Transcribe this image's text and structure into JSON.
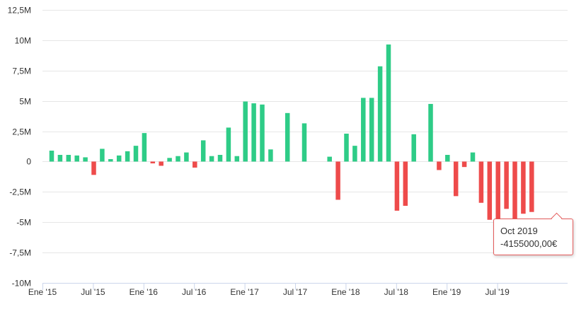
{
  "chart_data": {
    "type": "bar",
    "title": "",
    "xlabel": "",
    "ylabel": "",
    "ylim": [
      -10000000,
      12500000
    ],
    "y_ticks": [
      12500000,
      10000000,
      7500000,
      5000000,
      2500000,
      0,
      -2500000,
      -5000000,
      -7500000,
      -10000000
    ],
    "y_tick_labels": [
      "12,5M",
      "10M",
      "7,5M",
      "5M",
      "2,5M",
      "0",
      "-2,5M",
      "-5M",
      "-7,5M",
      "-10M"
    ],
    "x_tick_labels": [
      "Ene '15",
      "Jul '15",
      "Ene '16",
      "Jul '16",
      "Ene '17",
      "Jul '17",
      "Ene '18",
      "Jul '18",
      "Ene '19",
      "Jul '19"
    ],
    "grid": true,
    "positive_color": "#2ecc87",
    "negative_color": "#ee4b4b",
    "categories": [
      "Ene 2015",
      "Feb 2015",
      "Mar 2015",
      "Abr 2015",
      "May 2015",
      "Jun 2015",
      "Jul 2015",
      "Ago 2015",
      "Sep 2015",
      "Oct 2015",
      "Nov 2015",
      "Dic 2015",
      "Ene 2016",
      "Feb 2016",
      "Mar 2016",
      "Abr 2016",
      "May 2016",
      "Jun 2016",
      "Jul 2016",
      "Ago 2016",
      "Sep 2016",
      "Oct 2016",
      "Nov 2016",
      "Dic 2016",
      "Ene 2017",
      "Feb 2017",
      "Mar 2017",
      "Abr 2017",
      "May 2017",
      "Jun 2017",
      "Jul 2017",
      "Ago 2017",
      "Sep 2017",
      "Oct 2017",
      "Nov 2017",
      "Dic 2017",
      "Ene 2018",
      "Feb 2018",
      "Mar 2018",
      "Abr 2018",
      "May 2018",
      "Jun 2018",
      "Jul 2018",
      "Ago 2018",
      "Sep 2018",
      "Oct 2018",
      "Nov 2018",
      "Dic 2018",
      "Ene 2019",
      "Feb 2019",
      "Mar 2019",
      "Abr 2019",
      "May 2019",
      "Jun 2019",
      "Jul 2019",
      "Ago 2019",
      "Sep 2019",
      "Oct 2019"
    ],
    "values": [
      900000,
      550000,
      550000,
      500000,
      350000,
      -1100000,
      1050000,
      200000,
      500000,
      850000,
      1300000,
      2350000,
      -150000,
      -350000,
      300000,
      450000,
      750000,
      -500000,
      1750000,
      450000,
      550000,
      2800000,
      450000,
      4950000,
      4800000,
      4700000,
      1000000,
      0,
      4000000,
      0,
      3150000,
      0,
      0,
      400000,
      -3150000,
      2300000,
      1300000,
      5250000,
      5250000,
      7850000,
      9650000,
      -4050000,
      -3650000,
      2250000,
      0,
      4750000,
      -700000,
      550000,
      -2850000,
      -450000,
      750000,
      -3400000,
      -4800000,
      -4700000,
      -3900000,
      -5000000,
      -4300000,
      -4155000
    ],
    "tooltip": {
      "label": "Oct 2019",
      "value_text": "-4155000,00€"
    }
  }
}
